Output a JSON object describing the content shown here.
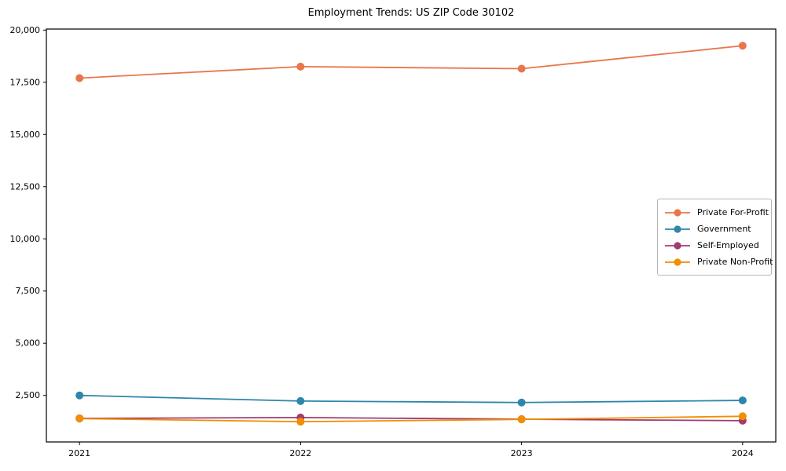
{
  "title": "Employment Trends: US ZIP Code 30102",
  "chart_data": {
    "type": "line",
    "title": "Employment Trends: US ZIP Code 30102",
    "xlabel": "",
    "ylabel": "",
    "x": [
      2021,
      2022,
      2023,
      2024
    ],
    "x_tick_labels": [
      "2021",
      "2022",
      "2023",
      "2024"
    ],
    "y_tick_values": [
      2500,
      5000,
      7500,
      10000,
      12500,
      15000,
      17500,
      20000
    ],
    "y_tick_labels": [
      "2,500",
      "5,000",
      "7,500",
      "10,000",
      "12,500",
      "15,000",
      "17,500",
      "20,000"
    ],
    "xlim": [
      2020.85,
      2024.15
    ],
    "ylim": [
      270,
      20050
    ],
    "grid": false,
    "legend_position": "center-right",
    "series": [
      {
        "name": "Private For-Profit",
        "color": "#E8764B",
        "values": [
          17700,
          18250,
          18150,
          19250
        ]
      },
      {
        "name": "Government",
        "color": "#2E86AB",
        "values": [
          2500,
          2230,
          2160,
          2260
        ]
      },
      {
        "name": "Self-Employed",
        "color": "#A23B72",
        "values": [
          1400,
          1440,
          1360,
          1290
        ]
      },
      {
        "name": "Private Non-Profit",
        "color": "#F18F01",
        "values": [
          1390,
          1240,
          1350,
          1500
        ]
      }
    ]
  }
}
